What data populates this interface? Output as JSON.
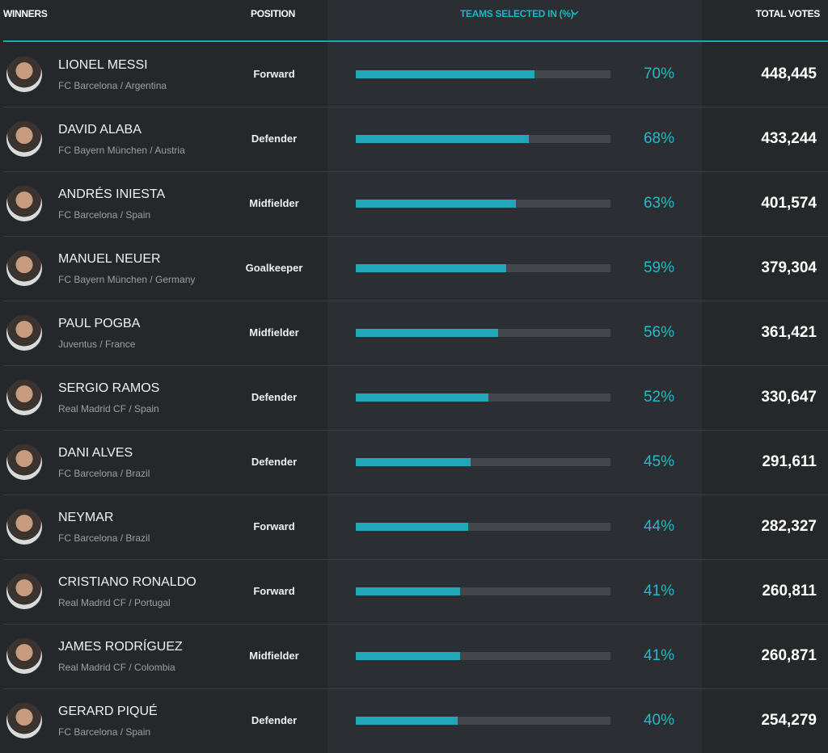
{
  "table": {
    "headers": [
      "WINNERS",
      "POSITION",
      "TEAMS SELECTED IN (%)",
      "TOTAL VOTES"
    ],
    "rows": [
      {
        "name": "LIONEL MESSI",
        "club": "FC Barcelona / Argentina",
        "position": "Forward",
        "pct": 70,
        "pct_label": "70%",
        "votes": "448,445"
      },
      {
        "name": "DAVID ALABA",
        "club": "FC Bayern München / Austria",
        "position": "Defender",
        "pct": 68,
        "pct_label": "68%",
        "votes": "433,244"
      },
      {
        "name": "ANDRÉS INIESTA",
        "club": "FC Barcelona / Spain",
        "position": "Midfielder",
        "pct": 63,
        "pct_label": "63%",
        "votes": "401,574"
      },
      {
        "name": "MANUEL NEUER",
        "club": "FC Bayern München / Germany",
        "position": "Goalkeeper",
        "pct": 59,
        "pct_label": "59%",
        "votes": "379,304"
      },
      {
        "name": "PAUL POGBA",
        "club": "Juventus / France",
        "position": "Midfielder",
        "pct": 56,
        "pct_label": "56%",
        "votes": "361,421"
      },
      {
        "name": "SERGIO RAMOS",
        "club": "Real Madrid CF / Spain",
        "position": "Defender",
        "pct": 52,
        "pct_label": "52%",
        "votes": "330,647"
      },
      {
        "name": "DANI ALVES",
        "club": "FC Barcelona / Brazil",
        "position": "Defender",
        "pct": 45,
        "pct_label": "45%",
        "votes": "291,611"
      },
      {
        "name": "NEYMAR",
        "club": "FC Barcelona / Brazil",
        "position": "Forward",
        "pct": 44,
        "pct_label": "44%",
        "votes": "282,327"
      },
      {
        "name": "CRISTIANO RONALDO",
        "club": "Real Madrid CF / Portugal",
        "position": "Forward",
        "pct": 41,
        "pct_label": "41%",
        "votes": "260,811"
      },
      {
        "name": "JAMES RODRÍGUEZ",
        "club": "Real Madrid CF / Colombia",
        "position": "Midfielder",
        "pct": 41,
        "pct_label": "41%",
        "votes": "260,871"
      },
      {
        "name": "GERARD PIQUÉ",
        "club": "FC Barcelona / Spain",
        "position": "Defender",
        "pct": 40,
        "pct_label": "40%",
        "votes": "254,279"
      }
    ]
  }
}
